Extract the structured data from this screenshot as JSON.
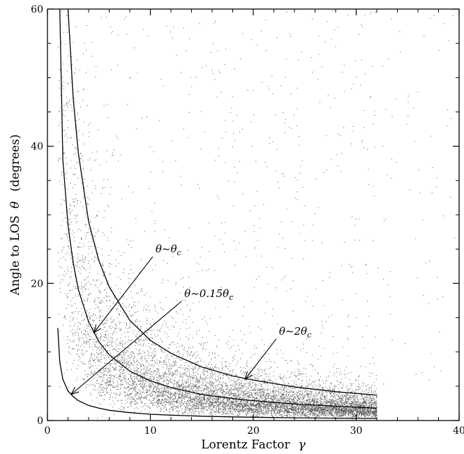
{
  "chart_data": {
    "type": "scatter",
    "xlabel": "Lorentz Factor",
    "xlabel_symbol": "γ",
    "ylabel": "Angle to LOS",
    "ylabel_symbol": "θ",
    "ylabel_unit": "(degrees)",
    "xlim": [
      0,
      40
    ],
    "ylim": [
      0,
      60
    ],
    "xticks": [
      0,
      10,
      20,
      30,
      40
    ],
    "yticks": [
      0,
      20,
      40,
      60
    ],
    "grid": false,
    "legend": "none",
    "point_color": "#555555",
    "line_color": "#000000",
    "scatter_description_points": [
      {
        "x": 2,
        "y": 20
      },
      {
        "x": 3,
        "y": 14
      },
      {
        "x": 5,
        "y": 9
      },
      {
        "x": 8,
        "y": 6
      },
      {
        "x": 12,
        "y": 4
      },
      {
        "x": 16,
        "y": 3
      },
      {
        "x": 20,
        "y": 2.5
      },
      {
        "x": 25,
        "y": 2.2
      },
      {
        "x": 30,
        "y": 2
      }
    ],
    "series": [
      {
        "x": [
          2.0,
          2.5,
          3,
          4,
          5,
          6,
          8,
          10,
          12,
          15,
          18,
          20,
          24,
          28,
          32
        ],
        "y": [
          60,
          47.0,
          39.0,
          29.0,
          23.3,
          19.5,
          14.6,
          11.7,
          9.8,
          7.8,
          6.5,
          5.9,
          4.9,
          4.2,
          3.7
        ]
      },
      {
        "x": [
          1.2,
          1.5,
          2,
          2.5,
          3,
          4,
          5,
          6,
          8,
          10,
          12,
          15,
          18,
          20,
          24,
          28,
          32
        ],
        "y": [
          60,
          38.0,
          28.5,
          23.0,
          19.1,
          14.4,
          11.5,
          9.6,
          7.2,
          5.8,
          4.8,
          3.8,
          3.2,
          2.9,
          2.4,
          2.1,
          1.8
        ]
      },
      {
        "x": [
          1.0,
          1.2,
          1.5,
          2,
          2.5,
          3,
          4,
          5,
          6,
          8,
          10,
          12,
          15,
          18,
          20,
          24,
          28,
          32
        ],
        "y": [
          13.5,
          8.5,
          6.0,
          4.3,
          3.5,
          2.9,
          2.2,
          1.8,
          1.5,
          1.15,
          0.92,
          0.78,
          0.63,
          0.53,
          0.48,
          0.4,
          0.35,
          0.31
        ]
      }
    ],
    "annotations": [
      {
        "label": "θ~θ",
        "sub": "c",
        "text_at": [
          10.5,
          24.5
        ],
        "arrow_to": [
          4.5,
          12.8
        ]
      },
      {
        "label": "θ~0.15θ",
        "sub": "c",
        "text_at": [
          13.3,
          18.0
        ],
        "arrow_to": [
          2.3,
          3.8
        ]
      },
      {
        "label": "θ~2θ",
        "sub": "c",
        "text_at": [
          22.5,
          12.5
        ],
        "arrow_to": [
          19.2,
          6.0
        ]
      }
    ]
  }
}
